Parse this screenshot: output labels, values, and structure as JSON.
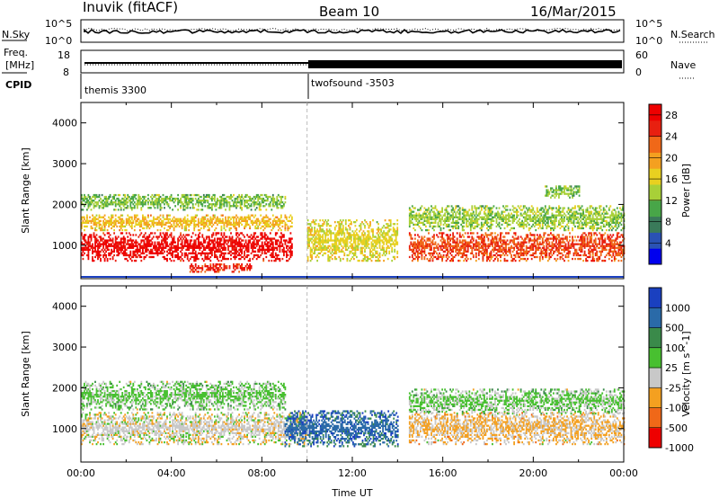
{
  "header": {
    "station": "Inuvik (fitACF)",
    "beam": "Beam 10",
    "date": "16/Mar/2015"
  },
  "top_panels": {
    "nsky_label": "N.Sky",
    "nsky_ticks": [
      "10^5",
      "10^0"
    ],
    "nsearch_label": "N.Search",
    "nsearch_ticks": [
      "10^5",
      "10^0"
    ],
    "freq_label": "Freq.",
    "freq_unit": "[MHz]",
    "freq_ticks": [
      "18",
      "8"
    ],
    "nave_label": "Nave",
    "nave_ticks": [
      "60",
      "0"
    ],
    "cpid_label": "CPID",
    "cpid_segments": [
      {
        "name": "themis 3300",
        "start_hour": 0.0
      },
      {
        "name": "twofsound -3503",
        "start_hour": 10.0
      }
    ]
  },
  "chart_data": [
    {
      "type": "heatmap",
      "title": "",
      "xlabel": "",
      "ylabel": "Slant Range [km]",
      "xlim_hours": [
        0,
        24
      ],
      "ylim": [
        180,
        4500
      ],
      "y_ticks": [
        "1000",
        "2000",
        "3000",
        "4000"
      ],
      "colorbar": {
        "label": "Power [dB]",
        "ticks": [
          "4",
          "8",
          "12",
          "16",
          "20",
          "24",
          "28"
        ],
        "range": [
          0,
          30
        ],
        "colors": [
          "#0000ee",
          "#2a52b4",
          "#3a7a5a",
          "#48a648",
          "#a8d038",
          "#e8d020",
          "#f4a020",
          "#f06818",
          "#e82010",
          "#ee0000"
        ]
      },
      "scatter_bands": [
        {
          "from_hour": 0.0,
          "to_hour": 9.3,
          "center_km": 950,
          "halfwidth_km": 350,
          "power_db": 28
        },
        {
          "from_hour": 0.0,
          "to_hour": 9.3,
          "center_km": 1550,
          "halfwidth_km": 200,
          "power_db": 18
        },
        {
          "from_hour": 0.0,
          "to_hour": 9.0,
          "center_km": 2050,
          "halfwidth_km": 200,
          "power_db": 12
        },
        {
          "from_hour": 4.8,
          "to_hour": 7.5,
          "center_km": 430,
          "halfwidth_km": 100,
          "power_db": 26
        },
        {
          "from_hour": 10.0,
          "to_hour": 14.0,
          "center_km": 1100,
          "halfwidth_km": 500,
          "power_db": 16
        },
        {
          "from_hour": 14.5,
          "to_hour": 24.0,
          "center_km": 950,
          "halfwidth_km": 350,
          "power_db": 24
        },
        {
          "from_hour": 14.5,
          "to_hour": 24.0,
          "center_km": 1650,
          "halfwidth_km": 300,
          "power_db": 13
        },
        {
          "from_hour": 20.5,
          "to_hour": 22.0,
          "center_km": 2300,
          "halfwidth_km": 150,
          "power_db": 12
        }
      ]
    },
    {
      "type": "heatmap",
      "title": "",
      "xlabel": "Time UT",
      "ylabel": "Slant Range [km]",
      "xlim_hours": [
        0,
        24
      ],
      "ylim": [
        180,
        4500
      ],
      "x_ticks": [
        "00:00",
        "04:00",
        "08:00",
        "12:00",
        "16:00",
        "20:00",
        "00:00"
      ],
      "y_ticks": [
        "1000",
        "2000",
        "3000",
        "4000"
      ],
      "colorbar": {
        "label": "Velocity [m s^-1]",
        "ticks": [
          "1000",
          "500",
          "100",
          "25",
          "-25",
          "-100",
          "-500",
          "-1000"
        ],
        "range": [
          -1100,
          1100
        ],
        "colors": [
          "#ee0000",
          "#f06818",
          "#f4a020",
          "#c8c8c8",
          "#48c030",
          "#3a8a4a",
          "#2a6aa8",
          "#1a40c0"
        ]
      },
      "scatter_bands": [
        {
          "from_hour": 0.0,
          "to_hour": 10.0,
          "center_km": 1000,
          "halfwidth_km": 400,
          "velocity_ms": -150
        },
        {
          "from_hour": 0.0,
          "to_hour": 9.0,
          "center_km": 1800,
          "halfwidth_km": 350,
          "velocity_ms": 60
        },
        {
          "from_hour": 9.0,
          "to_hour": 14.0,
          "center_km": 1000,
          "halfwidth_km": 450,
          "velocity_ms": 700
        },
        {
          "from_hour": 14.5,
          "to_hour": 24.0,
          "center_km": 1000,
          "halfwidth_km": 400,
          "velocity_ms": -300
        },
        {
          "from_hour": 14.5,
          "to_hour": 24.0,
          "center_km": 1650,
          "halfwidth_km": 300,
          "velocity_ms": 60
        }
      ]
    }
  ]
}
